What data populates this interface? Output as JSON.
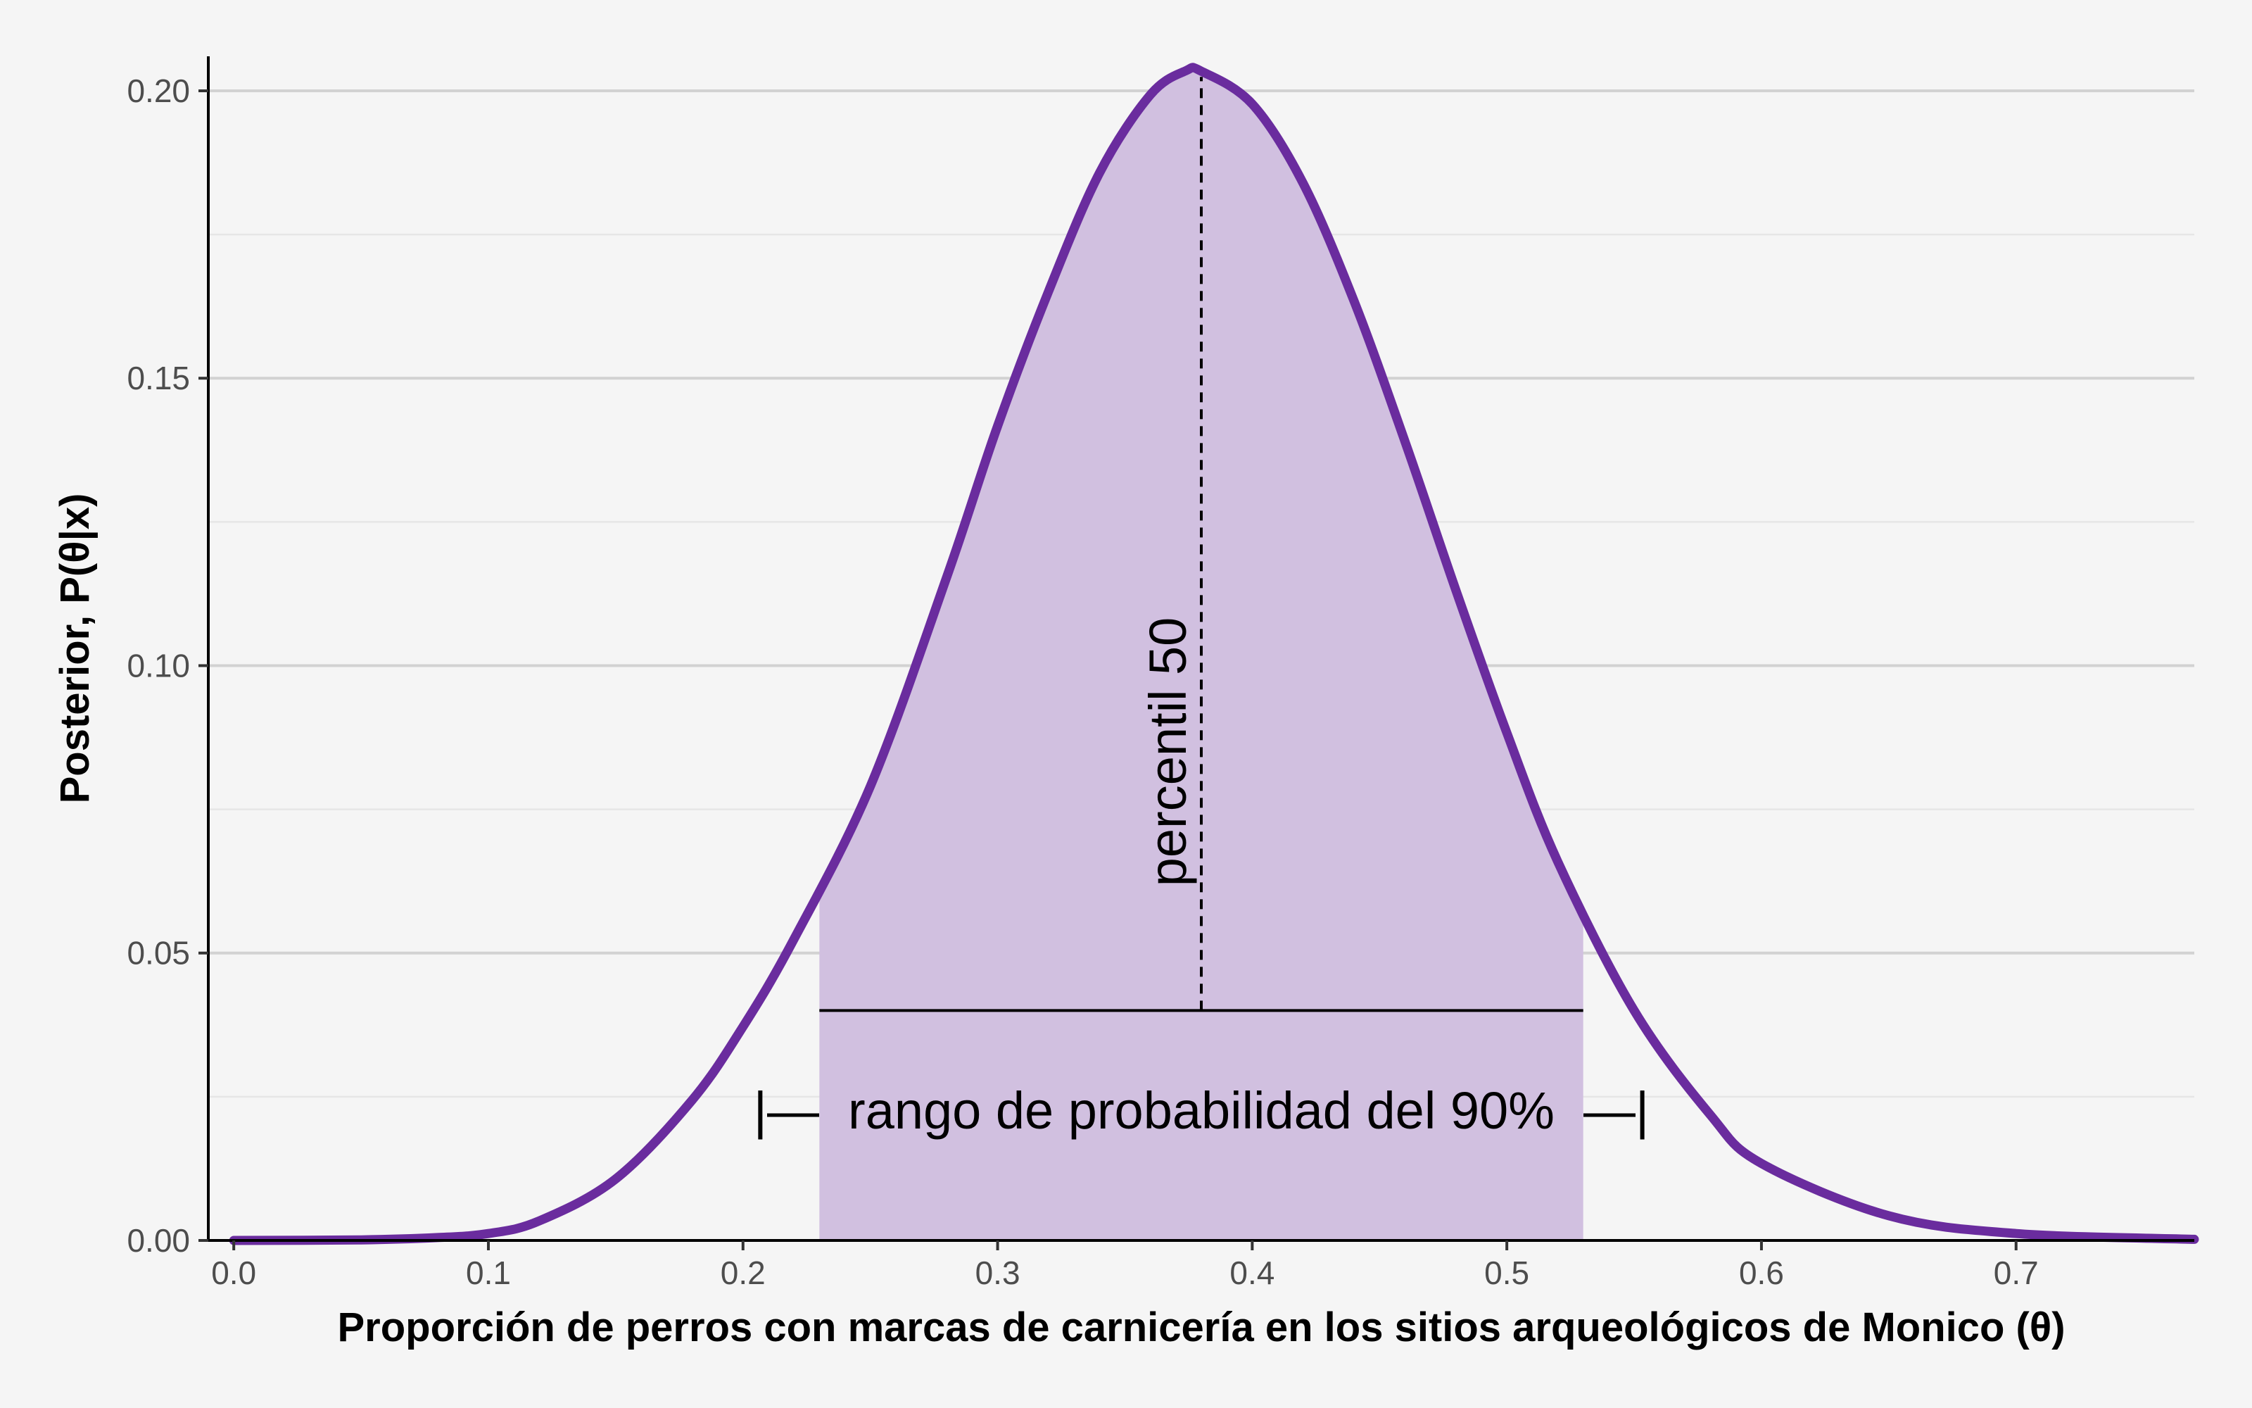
{
  "chart_data": {
    "type": "area",
    "title": "",
    "xlabel": "Proporción de perros con marcas de carnicería en los sitios arqueológicos de Monico (θ)",
    "ylabel": "Posterior, P(θ|x)",
    "xlim": [
      -0.01,
      0.77
    ],
    "ylim": [
      0,
      0.206
    ],
    "x_ticks": [
      0.0,
      0.1,
      0.2,
      0.3,
      0.4,
      0.5,
      0.6,
      0.7
    ],
    "x_tick_labels": [
      "0.0",
      "0.1",
      "0.2",
      "0.3",
      "0.4",
      "0.5",
      "0.6",
      "0.7"
    ],
    "y_ticks": [
      0.0,
      0.05,
      0.1,
      0.15,
      0.2
    ],
    "y_tick_labels": [
      "0.00",
      "0.05",
      "0.10",
      "0.15",
      "0.20"
    ],
    "grid": "horizontal",
    "series": [
      {
        "x": [
          0.0,
          0.05,
          0.08,
          0.1,
          0.12,
          0.15,
          0.18,
          0.2,
          0.22,
          0.25,
          0.28,
          0.3,
          0.32,
          0.34,
          0.36,
          0.374,
          0.38,
          0.4,
          0.42,
          0.44,
          0.46,
          0.48,
          0.5,
          0.52,
          0.55,
          0.58,
          0.6,
          0.65,
          0.7,
          0.77
        ],
        "y": [
          0.0,
          0.0001,
          0.0005,
          0.0012,
          0.0034,
          0.0107,
          0.0244,
          0.0372,
          0.0524,
          0.079,
          0.1154,
          0.1417,
          0.1651,
          0.1857,
          0.1993,
          0.2035,
          0.2034,
          0.1977,
          0.1839,
          0.1634,
          0.139,
          0.1131,
          0.0883,
          0.0659,
          0.04,
          0.0218,
          0.0134,
          0.0043,
          0.0012,
          0.0002
        ],
        "color": "#6a2c9e",
        "fill_interval": [
          0.23,
          0.53
        ],
        "fill_color": "#d1c0e0"
      }
    ],
    "annotations": {
      "median_x": 0.38,
      "interval_y": 0.04,
      "median_label": "percentil 50",
      "range_label": "|—  rango de probabilidad del 90%  —|"
    }
  }
}
